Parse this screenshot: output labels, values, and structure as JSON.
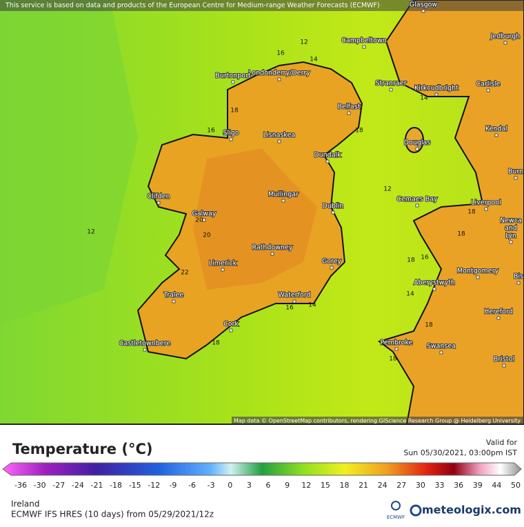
{
  "header": {
    "notice": "This service is based on data and products of the European Centre for Medium-range Weather Forecasts (ECMWF)"
  },
  "map": {
    "places": [
      "Glasgow",
      "Jedburgh",
      "Campbeltown",
      "Londonderry/Derry",
      "Burtonport",
      "Stranraer",
      "Kirkcudbright",
      "Carlisle",
      "Belfast",
      "Sligo",
      "Lisnaskea",
      "Kendal",
      "Douglas",
      "Dundalk",
      "Burn",
      "Clifden",
      "Mullingar",
      "Cemaes Bay",
      "Liverpool",
      "Dublin",
      "Galway",
      "Newca",
      "and",
      "Lyn",
      "Rathdowney",
      "Limerick",
      "Gorey",
      "Montgomery",
      "Bis",
      "Aberystwyth",
      "Tralee",
      "Waterford",
      "Hereford",
      "Cork",
      "Castletownbere",
      "Pembroke",
      "Swansea",
      "Bristol"
    ],
    "contour_labels": [
      12,
      16,
      14,
      18,
      16,
      18,
      14,
      12,
      12,
      18,
      20,
      20,
      18,
      18,
      16,
      22,
      14,
      16,
      14,
      18,
      18,
      18
    ],
    "attribution": "Map data © OpenStreetMap contributors, rendering GIScience Research Group @ Heidelberg University"
  },
  "legend": {
    "title": "Temperature (°C)",
    "valid_label": "Valid for",
    "valid_time": "Sun 05/30/2021, 03:00pm IST",
    "ticks": [
      -36,
      -30,
      -27,
      -24,
      -21,
      -18,
      -15,
      -12,
      -9,
      -6,
      -3,
      0,
      3,
      6,
      9,
      12,
      15,
      18,
      21,
      24,
      27,
      30,
      33,
      36,
      39,
      44,
      50
    ]
  },
  "footer": {
    "region": "Ireland",
    "model": "ECMWF IFS HRES (10 days) from 05/29/2021/12z",
    "ecmwf_logo": "ECMWF",
    "brand": "meteologix.com"
  }
}
